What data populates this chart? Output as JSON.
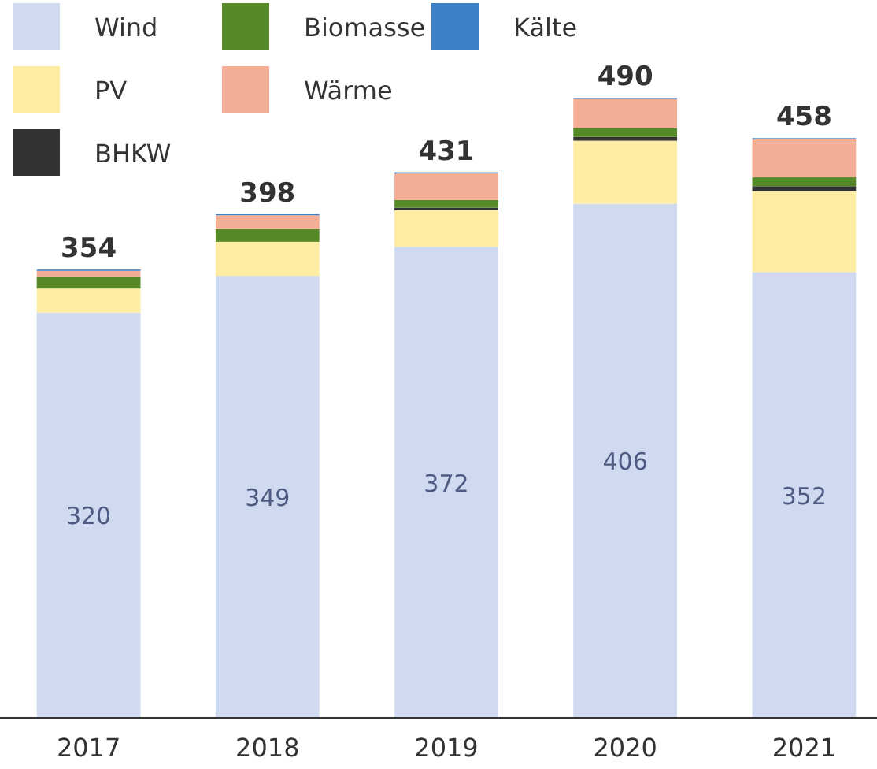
{
  "chart_data": {
    "type": "bar",
    "stacked": true,
    "legend": "top",
    "categories": [
      "2017",
      "2018",
      "2019",
      "2020",
      "2021"
    ],
    "series": [
      {
        "name": "Wind",
        "color": "#cfd9f0",
        "values": [
          320,
          349,
          372,
          406,
          352
        ],
        "value_labels": [
          "320",
          "349",
          "372",
          "406",
          "352"
        ]
      },
      {
        "name": "PV",
        "color": "#feeca3",
        "values": [
          19,
          27,
          29,
          50,
          64
        ]
      },
      {
        "name": "BHKW",
        "color": "#333333",
        "values": [
          0,
          0,
          2,
          3,
          4
        ]
      },
      {
        "name": "Biomasse",
        "color": "#568a27",
        "values": [
          9,
          10,
          6,
          7,
          7
        ]
      },
      {
        "name": "Wärme",
        "color": "#f5ae96",
        "values": [
          5,
          11,
          21,
          23,
          30
        ]
      },
      {
        "name": "Kälte",
        "color": "#3d82c6",
        "values": [
          1,
          1,
          1,
          1,
          1
        ]
      }
    ],
    "totals": [
      "354",
      "398",
      "431",
      "490",
      "458"
    ]
  }
}
